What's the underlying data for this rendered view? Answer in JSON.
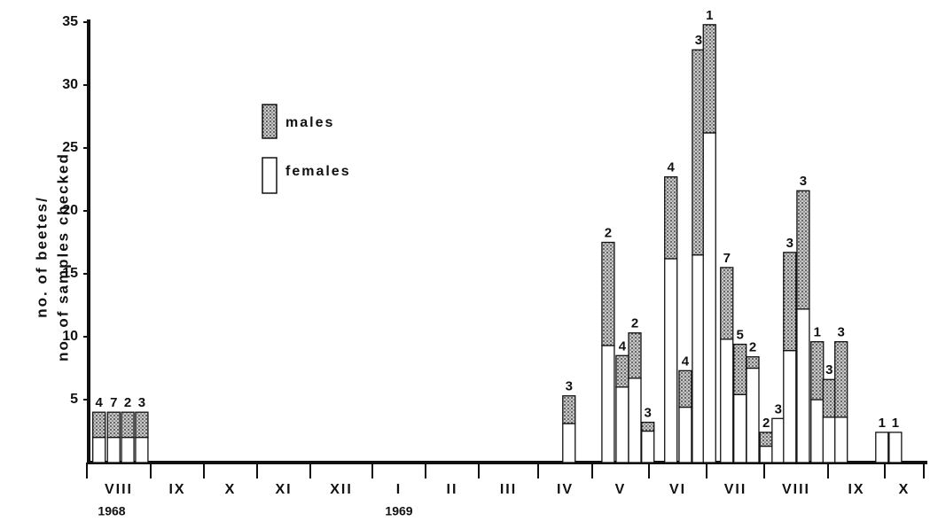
{
  "chart_data": {
    "type": "stacked_bar",
    "y_label_lines": [
      "no. of beetes/",
      "no. of samples checked"
    ],
    "x_categories": [
      "VIII",
      "IX",
      "X",
      "XI",
      "XII",
      "I",
      "II",
      "III",
      "IV",
      "V",
      "VI",
      "VII",
      "VIII",
      "IX",
      "X"
    ],
    "year_labels": [
      "1968",
      "1969"
    ],
    "x": [
      0.19,
      0.42,
      0.64,
      0.86,
      8.57,
      9.28,
      9.53,
      9.75,
      9.98,
      10.38,
      10.63,
      10.86,
      11.05,
      11.35,
      11.58,
      11.8,
      12.03,
      12.22,
      12.4,
      12.61,
      12.83,
      13.02,
      13.23,
      13.95,
      14.27
    ],
    "xlim": [
      0,
      15
    ],
    "xticks": [
      0,
      1,
      2,
      3,
      4,
      5,
      6,
      7,
      8,
      9,
      10,
      11,
      12,
      13,
      14,
      15
    ],
    "series": [
      {
        "name": "females",
        "color": "#ffffff",
        "values": [
          2,
          2,
          2,
          2,
          3.1,
          9.3,
          6,
          6.7,
          2.5,
          16.2,
          4.4,
          16.5,
          26.2,
          9.8,
          5.4,
          7.5,
          1.3,
          3.5,
          8.9,
          12.2,
          5,
          3.6,
          3.6,
          2.4,
          2.4
        ]
      },
      {
        "name": "males",
        "color": "#777777",
        "values": [
          2,
          2,
          2,
          2,
          2.2,
          8.2,
          2.5,
          3.6,
          0.7,
          6.5,
          2.9,
          16.3,
          8.6,
          5.7,
          4,
          0.9,
          1.1,
          0,
          7.8,
          9.4,
          4.6,
          3,
          6,
          0,
          0
        ]
      }
    ],
    "sample_counts": [
      4,
      7,
      2,
      3,
      3,
      2,
      4,
      2,
      3,
      4,
      4,
      3,
      1,
      7,
      5,
      2,
      2,
      3,
      3,
      3,
      1,
      3,
      3,
      1,
      1
    ],
    "ylim": [
      0,
      35
    ],
    "yticks": [
      5,
      10,
      15,
      20,
      25,
      30,
      35
    ]
  }
}
